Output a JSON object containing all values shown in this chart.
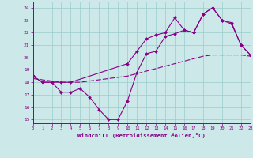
{
  "xlabel": "Windchill (Refroidissement éolien,°C)",
  "bg_color": "#cce8e8",
  "line_color": "#880088",
  "grid_color": "#99cccc",
  "x_ticks": [
    0,
    1,
    2,
    3,
    4,
    5,
    6,
    7,
    8,
    9,
    10,
    11,
    12,
    13,
    14,
    15,
    16,
    17,
    18,
    19,
    20,
    21,
    22,
    23
  ],
  "y_ticks": [
    15,
    16,
    17,
    18,
    19,
    20,
    21,
    22,
    23,
    24
  ],
  "xlim": [
    0,
    23
  ],
  "ylim": [
    14.7,
    24.5
  ],
  "line1_x": [
    0,
    1,
    2,
    3,
    4,
    5,
    6,
    7,
    8,
    9,
    10,
    11,
    12,
    13,
    14,
    15,
    16,
    17,
    18,
    19,
    20,
    21,
    22,
    23
  ],
  "line1_y": [
    18.5,
    18.0,
    18.0,
    17.2,
    17.2,
    17.5,
    16.8,
    15.8,
    15.0,
    15.0,
    16.5,
    18.8,
    20.3,
    20.5,
    21.7,
    21.9,
    22.2,
    22.0,
    23.5,
    24.0,
    23.0,
    22.7,
    21.0,
    20.2
  ],
  "line2_x": [
    0,
    1,
    2,
    3,
    4,
    5,
    6,
    7,
    8,
    9,
    10,
    11,
    12,
    13,
    14,
    15,
    16,
    17,
    18,
    19,
    20,
    21,
    22,
    23
  ],
  "line2_y": [
    18.3,
    18.2,
    18.1,
    18.0,
    18.0,
    18.0,
    18.1,
    18.2,
    18.3,
    18.4,
    18.5,
    18.7,
    18.9,
    19.1,
    19.3,
    19.5,
    19.7,
    19.9,
    20.1,
    20.2,
    20.2,
    20.2,
    20.2,
    20.1
  ],
  "line3_x": [
    0,
    1,
    2,
    3,
    4,
    10,
    11,
    12,
    13,
    14,
    15,
    16,
    17,
    18,
    19,
    20,
    21,
    22,
    23
  ],
  "line3_y": [
    18.5,
    18.0,
    18.0,
    18.0,
    18.0,
    19.5,
    20.5,
    21.5,
    21.8,
    22.0,
    23.2,
    22.2,
    22.0,
    23.5,
    24.0,
    23.0,
    22.8,
    21.0,
    20.2
  ]
}
